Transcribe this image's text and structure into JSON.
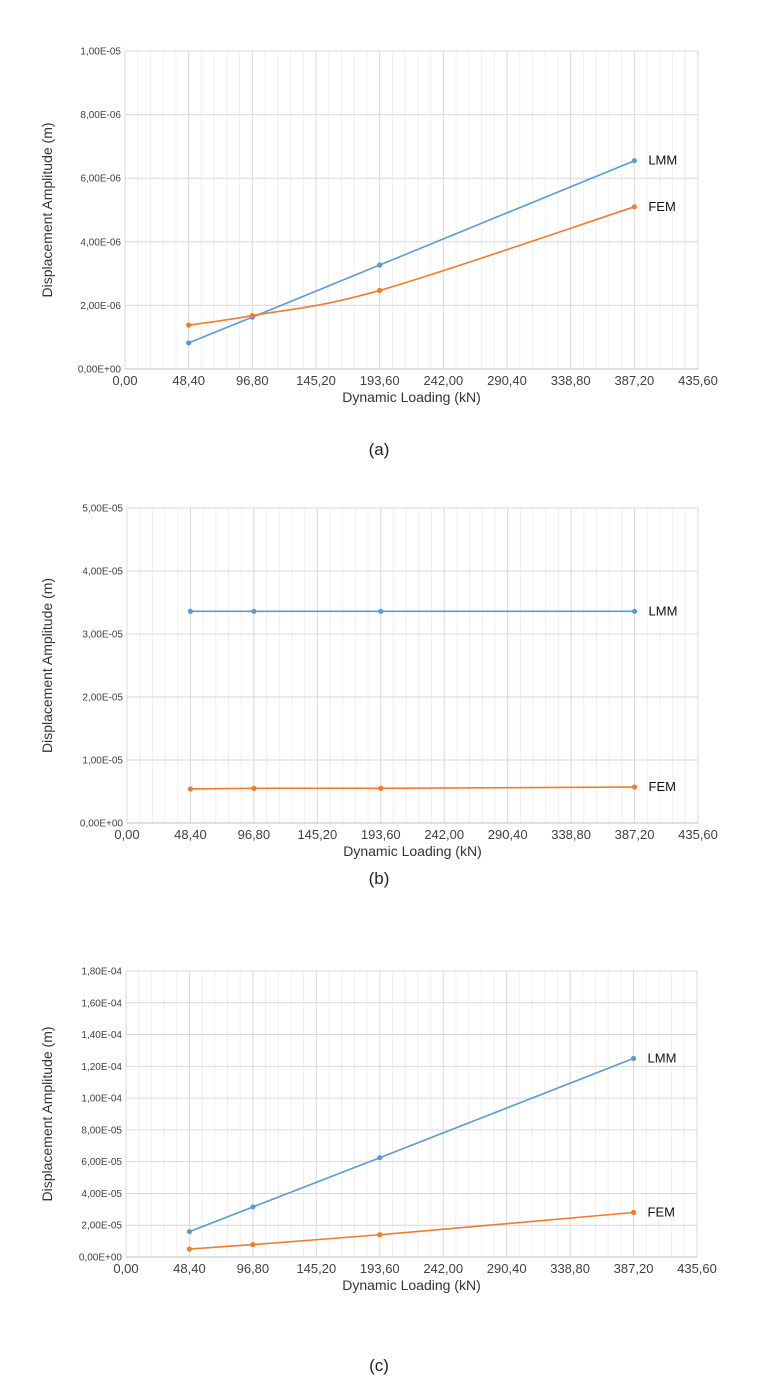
{
  "chart_data": [
    {
      "type": "line",
      "caption": "(a)",
      "xlabel": "Dynamic Loading (kN)",
      "ylabel": "Displacement Amplitude (m)",
      "xlim": [
        0,
        435.6
      ],
      "ylim": [
        0,
        1e-05
      ],
      "x_ticks": [
        "0,00",
        "48,40",
        "96,80",
        "145,20",
        "193,60",
        "242,00",
        "290,40",
        "338,80",
        "387,20",
        "435,60"
      ],
      "y_ticks": [
        "0,00E+00",
        "2,00E-06",
        "4,00E-06",
        "6,00E-06",
        "8,00E-06",
        "1,00E-05"
      ],
      "grid": true,
      "series": [
        {
          "name": "LMM",
          "color": "#5B9BD5",
          "smooth": false,
          "x": [
            48.4,
            96.8,
            193.6,
            387.2
          ],
          "y": [
            8.2e-07,
            1.63e-06,
            3.27e-06,
            6.55e-06
          ]
        },
        {
          "name": "FEM",
          "color": "#ED7D31",
          "smooth": true,
          "x": [
            48.4,
            96.8,
            193.6,
            387.2
          ],
          "y": [
            1.38e-06,
            1.68e-06,
            2.47e-06,
            5.1e-06
          ]
        }
      ]
    },
    {
      "type": "line",
      "caption": "(b)",
      "xlabel": "Dynamic Loading (kN)",
      "ylabel": "Displacement Amplitude (m)",
      "xlim": [
        0,
        435.6
      ],
      "ylim": [
        0,
        5e-05
      ],
      "x_ticks": [
        "0,00",
        "48,40",
        "96,80",
        "145,20",
        "193,60",
        "242,00",
        "290,40",
        "338,80",
        "387,20",
        "435,60"
      ],
      "y_ticks": [
        "0,00E+00",
        "1,00E-05",
        "2,00E-05",
        "3,00E-05",
        "4,00E-05",
        "5,00E-05"
      ],
      "grid": true,
      "series": [
        {
          "name": "LMM",
          "color": "#5B9BD5",
          "smooth": false,
          "x": [
            48.4,
            96.8,
            193.6,
            387.2
          ],
          "y": [
            3.36e-05,
            3.36e-05,
            3.36e-05,
            3.36e-05
          ]
        },
        {
          "name": "FEM",
          "color": "#ED7D31",
          "smooth": false,
          "x": [
            48.4,
            96.8,
            193.6,
            387.2
          ],
          "y": [
            5.4e-06,
            5.5e-06,
            5.5e-06,
            5.7e-06
          ]
        }
      ]
    },
    {
      "type": "line",
      "caption": "(c)",
      "xlabel": "Dynamic Loading (kN)",
      "ylabel": "Displacement Amplitude (m)",
      "xlim": [
        0,
        435.6
      ],
      "ylim": [
        0,
        0.00018
      ],
      "x_ticks": [
        "0,00",
        "48,40",
        "96,80",
        "145,20",
        "193,60",
        "242,00",
        "290,40",
        "338,80",
        "387,20",
        "435,60"
      ],
      "y_ticks": [
        "0,00E+00",
        "2,00E-05",
        "4,00E-05",
        "6,00E-05",
        "8,00E-05",
        "1,00E-04",
        "1,20E-04",
        "1,40E-04",
        "1,60E-04",
        "1,80E-04"
      ],
      "grid": true,
      "series": [
        {
          "name": "LMM",
          "color": "#5B9BD5",
          "smooth": false,
          "x": [
            48.4,
            96.8,
            193.6,
            387.2
          ],
          "y": [
            1.6e-05,
            3.15e-05,
            6.25e-05,
            0.000125
          ]
        },
        {
          "name": "FEM",
          "color": "#ED7D31",
          "smooth": false,
          "x": [
            48.4,
            96.8,
            193.6,
            387.2
          ],
          "y": [
            5e-06,
            7.8e-06,
            1.4e-05,
            2.8e-05
          ]
        }
      ]
    }
  ]
}
